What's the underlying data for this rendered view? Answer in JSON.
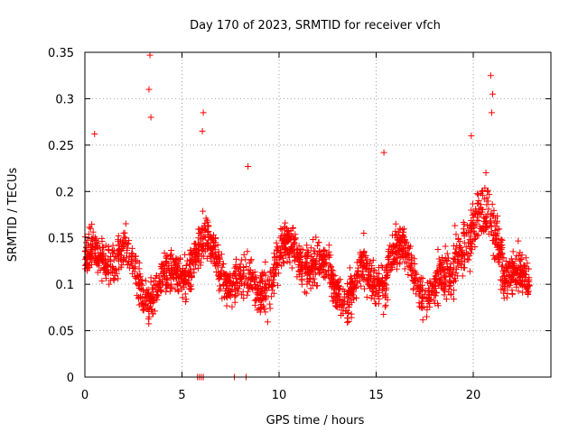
{
  "chart_data": {
    "type": "scatter",
    "title": "Day 170 of 2023, SRMTID for receiver vfch",
    "xlabel": "GPS time / hours",
    "ylabel": "SRMTID / TECUs",
    "xlim": [
      0,
      24
    ],
    "ylim": [
      0,
      0.35
    ],
    "xticks": [
      0,
      5,
      10,
      15,
      20
    ],
    "xtick_labels": [
      "0",
      "5",
      "10",
      "15",
      "20"
    ],
    "yticks": [
      0,
      0.05,
      0.1,
      0.15,
      0.2,
      0.25,
      0.3,
      0.35
    ],
    "ytick_labels": [
      "0",
      "0.05",
      "0.1",
      "0.15",
      "0.2",
      "0.25",
      "0.3",
      "0.35"
    ],
    "grid": true,
    "marker": "+",
    "series": [
      {
        "name": "SRMTID",
        "color": "#ff0000",
        "x_range_hours": [
          0,
          22.9
        ],
        "typical_range": [
          0.05,
          0.2
        ],
        "spikes": [
          {
            "x": 0.5,
            "y": 0.262
          },
          {
            "x": 3.35,
            "y": 0.347
          },
          {
            "x": 3.3,
            "y": 0.31
          },
          {
            "x": 3.4,
            "y": 0.28
          },
          {
            "x": 6.1,
            "y": 0.285
          },
          {
            "x": 6.05,
            "y": 0.265
          },
          {
            "x": 8.4,
            "y": 0.227
          },
          {
            "x": 15.4,
            "y": 0.242
          },
          {
            "x": 19.9,
            "y": 0.26
          },
          {
            "x": 20.9,
            "y": 0.325
          },
          {
            "x": 21.0,
            "y": 0.305
          },
          {
            "x": 20.95,
            "y": 0.285
          }
        ],
        "zero_points_x": [
          5.8,
          5.9,
          6.0,
          6.1,
          7.7,
          8.3
        ]
      }
    ]
  }
}
